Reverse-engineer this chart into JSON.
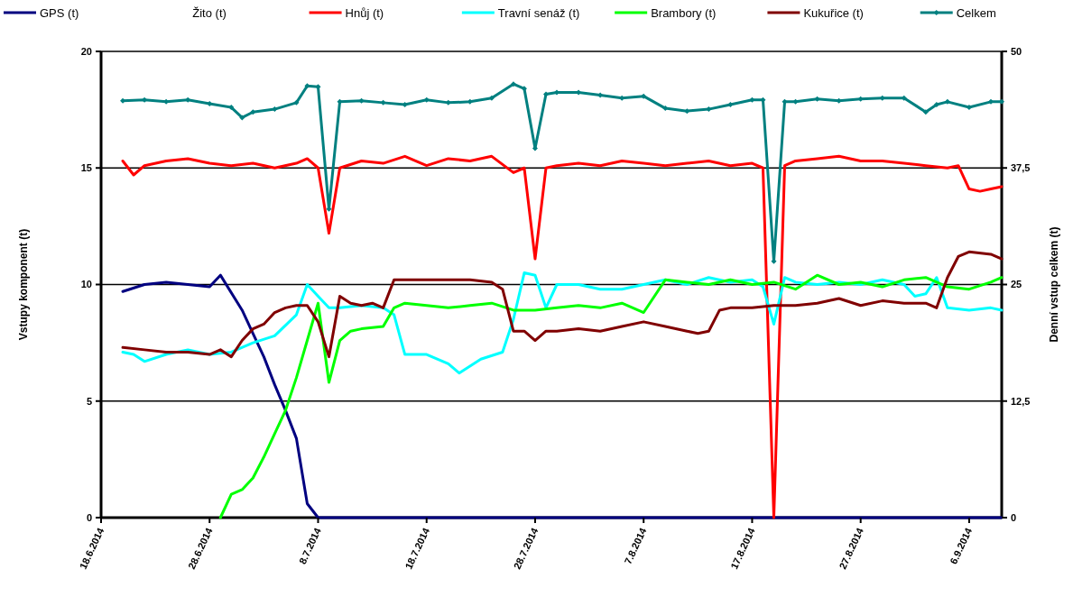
{
  "chart_data": {
    "type": "line",
    "ylabel": "Vstupy komponent (t)",
    "y2label": "Denní vstup celkem (t)",
    "xlim": [
      "2014-06-18",
      "2014-09-09"
    ],
    "xticks": [
      {
        "value": "2014-06-18",
        "label": "18.6.2014"
      },
      {
        "value": "2014-06-28",
        "label": "28.6.2014"
      },
      {
        "value": "2014-07-08",
        "label": "8.7.2014"
      },
      {
        "value": "2014-07-18",
        "label": "18.7.2014"
      },
      {
        "value": "2014-07-28",
        "label": "28.7.2014"
      },
      {
        "value": "2014-08-07",
        "label": "7.8.2014"
      },
      {
        "value": "2014-08-17",
        "label": "17.8.2014"
      },
      {
        "value": "2014-08-27",
        "label": "27.8.2014"
      },
      {
        "value": "2014-09-06",
        "label": "6.9.2014"
      }
    ],
    "ylim": [
      0,
      20
    ],
    "yticks": [
      0,
      5,
      10,
      15,
      20
    ],
    "y2lim": [
      0,
      50
    ],
    "y2ticks": [
      0,
      {
        "value": 12.5,
        "label": "12,5"
      },
      25,
      {
        "value": 37.5,
        "label": "37,5"
      },
      50
    ],
    "grid": "y",
    "legend": "top",
    "series": [
      {
        "name": "GPS (t)",
        "color": "#000080",
        "x": [
          "2014-06-20",
          "2014-06-22",
          "2014-06-24",
          "2014-06-26",
          "2014-06-28",
          "2014-06-29",
          "2014-07-01",
          "2014-07-02",
          "2014-07-03",
          "2014-07-04",
          "2014-07-05",
          "2014-07-06",
          "2014-07-07",
          "2014-07-08",
          "2014-09-09"
        ],
        "values": [
          9.7,
          10.0,
          10.1,
          10.0,
          9.9,
          10.4,
          8.9,
          7.9,
          6.9,
          5.7,
          4.6,
          3.4,
          0.6,
          0,
          0
        ]
      },
      {
        "name": "Žito (t)"
      },
      {
        "name": "Hnůj (t)",
        "color": "#ff0000",
        "x": [
          "2014-06-20",
          "2014-06-21",
          "2014-06-22",
          "2014-06-24",
          "2014-06-26",
          "2014-06-28",
          "2014-06-30",
          "2014-07-02",
          "2014-07-04",
          "2014-07-06",
          "2014-07-07",
          "2014-07-08",
          "2014-07-09",
          "2014-07-10",
          "2014-07-12",
          "2014-07-14",
          "2014-07-16",
          "2014-07-18",
          "2014-07-20",
          "2014-07-22",
          "2014-07-24",
          "2014-07-26",
          "2014-07-27",
          "2014-07-28",
          "2014-07-29",
          "2014-07-30",
          "2014-08-01",
          "2014-08-03",
          "2014-08-05",
          "2014-08-07",
          "2014-08-09",
          "2014-08-11",
          "2014-08-13",
          "2014-08-15",
          "2014-08-17",
          "2014-08-18",
          "2014-08-19",
          "2014-08-20",
          "2014-08-21",
          "2014-08-23",
          "2014-08-25",
          "2014-08-27",
          "2014-08-29",
          "2014-08-31",
          "2014-09-02",
          "2014-09-04",
          "2014-09-05",
          "2014-09-06",
          "2014-09-07",
          "2014-09-08",
          "2014-09-09"
        ],
        "values": [
          15.3,
          14.7,
          15.1,
          15.3,
          15.4,
          15.2,
          15.1,
          15.2,
          15.0,
          15.2,
          15.4,
          15.0,
          12.2,
          15.0,
          15.3,
          15.2,
          15.5,
          15.1,
          15.4,
          15.3,
          15.5,
          14.8,
          15.0,
          11.1,
          15.0,
          15.1,
          15.2,
          15.1,
          15.3,
          15.2,
          15.1,
          15.2,
          15.3,
          15.1,
          15.2,
          15.0,
          0,
          15.1,
          15.3,
          15.4,
          15.5,
          15.3,
          15.3,
          15.2,
          15.1,
          15.0,
          15.1,
          14.1,
          14.0,
          14.1,
          14.2
        ]
      },
      {
        "name": "Travní senáž (t)",
        "color": "#00ffff",
        "x": [
          "2014-06-20",
          "2014-06-21",
          "2014-06-22",
          "2014-06-24",
          "2014-06-26",
          "2014-06-28",
          "2014-06-30",
          "2014-07-02",
          "2014-07-04",
          "2014-07-06",
          "2014-07-07",
          "2014-07-08",
          "2014-07-09",
          "2014-07-10",
          "2014-07-12",
          "2014-07-14",
          "2014-07-15",
          "2014-07-16",
          "2014-07-18",
          "2014-07-20",
          "2014-07-21",
          "2014-07-23",
          "2014-07-25",
          "2014-07-26",
          "2014-07-27",
          "2014-07-28",
          "2014-07-29",
          "2014-07-30",
          "2014-08-01",
          "2014-08-03",
          "2014-08-05",
          "2014-08-07",
          "2014-08-09",
          "2014-08-11",
          "2014-08-13",
          "2014-08-15",
          "2014-08-17",
          "2014-08-18",
          "2014-08-19",
          "2014-08-20",
          "2014-08-21",
          "2014-08-23",
          "2014-08-25",
          "2014-08-27",
          "2014-08-29",
          "2014-08-31",
          "2014-09-01",
          "2014-09-02",
          "2014-09-03",
          "2014-09-04",
          "2014-09-06",
          "2014-09-08",
          "2014-09-09"
        ],
        "values": [
          7.1,
          7.0,
          6.7,
          7.0,
          7.2,
          7.0,
          7.1,
          7.5,
          7.8,
          8.7,
          10.0,
          9.5,
          9.0,
          9.0,
          9.1,
          9.0,
          8.7,
          7.0,
          7.0,
          6.6,
          6.2,
          6.8,
          7.1,
          8.5,
          10.5,
          10.4,
          9.0,
          10.0,
          10.0,
          9.8,
          9.8,
          10.0,
          10.2,
          10.0,
          10.3,
          10.1,
          10.2,
          9.9,
          8.3,
          10.3,
          10.1,
          10.0,
          10.1,
          10.0,
          10.2,
          10.0,
          9.5,
          9.6,
          10.3,
          9.0,
          8.9,
          9.0,
          8.9
        ]
      },
      {
        "name": "Brambory (t)",
        "color": "#00ff00",
        "x": [
          "2014-06-29",
          "2014-06-30",
          "2014-07-01",
          "2014-07-02",
          "2014-07-03",
          "2014-07-04",
          "2014-07-05",
          "2014-07-06",
          "2014-07-07",
          "2014-07-08",
          "2014-07-09",
          "2014-07-10",
          "2014-07-11",
          "2014-07-12",
          "2014-07-14",
          "2014-07-15",
          "2014-07-16",
          "2014-07-18",
          "2014-07-20",
          "2014-07-22",
          "2014-07-24",
          "2014-07-26",
          "2014-07-28",
          "2014-07-30",
          "2014-08-01",
          "2014-08-03",
          "2014-08-05",
          "2014-08-07",
          "2014-08-09",
          "2014-08-11",
          "2014-08-13",
          "2014-08-15",
          "2014-08-17",
          "2014-08-19",
          "2014-08-21",
          "2014-08-23",
          "2014-08-25",
          "2014-08-27",
          "2014-08-29",
          "2014-08-31",
          "2014-09-02",
          "2014-09-04",
          "2014-09-06",
          "2014-09-08",
          "2014-09-09"
        ],
        "values": [
          0,
          1.0,
          1.2,
          1.7,
          2.6,
          3.6,
          4.6,
          6.0,
          7.6,
          9.2,
          5.8,
          7.6,
          8.0,
          8.1,
          8.2,
          9.0,
          9.2,
          9.1,
          9.0,
          9.1,
          9.2,
          8.9,
          8.9,
          9.0,
          9.1,
          9.0,
          9.2,
          8.8,
          10.2,
          10.1,
          10.0,
          10.2,
          10.0,
          10.1,
          9.8,
          10.4,
          10.0,
          10.1,
          9.9,
          10.2,
          10.3,
          9.9,
          9.8,
          10.1,
          10.3
        ]
      },
      {
        "name": "Kukuřice (t)",
        "color": "#800000",
        "x": [
          "2014-06-20",
          "2014-06-22",
          "2014-06-24",
          "2014-06-26",
          "2014-06-28",
          "2014-06-29",
          "2014-06-30",
          "2014-07-01",
          "2014-07-02",
          "2014-07-03",
          "2014-07-04",
          "2014-07-05",
          "2014-07-06",
          "2014-07-07",
          "2014-07-08",
          "2014-07-09",
          "2014-07-10",
          "2014-07-11",
          "2014-07-12",
          "2014-07-13",
          "2014-07-14",
          "2014-07-15",
          "2014-07-16",
          "2014-07-18",
          "2014-07-20",
          "2014-07-22",
          "2014-07-24",
          "2014-07-25",
          "2014-07-26",
          "2014-07-27",
          "2014-07-28",
          "2014-07-29",
          "2014-07-30",
          "2014-08-01",
          "2014-08-03",
          "2014-08-05",
          "2014-08-07",
          "2014-08-09",
          "2014-08-11",
          "2014-08-12",
          "2014-08-13",
          "2014-08-14",
          "2014-08-15",
          "2014-08-17",
          "2014-08-19",
          "2014-08-21",
          "2014-08-23",
          "2014-08-25",
          "2014-08-27",
          "2014-08-29",
          "2014-08-31",
          "2014-09-02",
          "2014-09-03",
          "2014-09-04",
          "2014-09-05",
          "2014-09-06",
          "2014-09-08",
          "2014-09-09"
        ],
        "values": [
          7.3,
          7.2,
          7.1,
          7.1,
          7.0,
          7.2,
          6.9,
          7.6,
          8.1,
          8.3,
          8.8,
          9.0,
          9.1,
          9.1,
          8.4,
          6.9,
          9.5,
          9.2,
          9.1,
          9.2,
          9.0,
          10.2,
          10.2,
          10.2,
          10.2,
          10.2,
          10.1,
          9.8,
          8.0,
          8.0,
          7.6,
          8.0,
          8.0,
          8.1,
          8.0,
          8.2,
          8.4,
          8.2,
          8.0,
          7.9,
          8.0,
          8.9,
          9.0,
          9.0,
          9.1,
          9.1,
          9.2,
          9.4,
          9.1,
          9.3,
          9.2,
          9.2,
          9.0,
          10.3,
          11.2,
          11.4,
          11.3,
          11.1
        ]
      },
      {
        "name": "Celkem",
        "color": "#008080",
        "axis": "y2",
        "marker": "diamond",
        "x": [
          "2014-06-20",
          "2014-06-22",
          "2014-06-24",
          "2014-06-26",
          "2014-06-28",
          "2014-06-30",
          "2014-07-01",
          "2014-07-02",
          "2014-07-04",
          "2014-07-06",
          "2014-07-07",
          "2014-07-08",
          "2014-07-09",
          "2014-07-10",
          "2014-07-12",
          "2014-07-14",
          "2014-07-16",
          "2014-07-18",
          "2014-07-20",
          "2014-07-22",
          "2014-07-24",
          "2014-07-26",
          "2014-07-27",
          "2014-07-28",
          "2014-07-29",
          "2014-07-30",
          "2014-08-01",
          "2014-08-03",
          "2014-08-05",
          "2014-08-07",
          "2014-08-09",
          "2014-08-11",
          "2014-08-13",
          "2014-08-15",
          "2014-08-17",
          "2014-08-18",
          "2014-08-19",
          "2014-08-20",
          "2014-08-21",
          "2014-08-23",
          "2014-08-25",
          "2014-08-27",
          "2014-08-29",
          "2014-08-31",
          "2014-09-02",
          "2014-09-03",
          "2014-09-04",
          "2014-09-06",
          "2014-09-08",
          "2014-09-09"
        ],
        "values": [
          44.7,
          44.8,
          44.6,
          44.8,
          44.4,
          44.0,
          42.9,
          43.5,
          43.8,
          44.5,
          46.3,
          46.2,
          33.1,
          44.6,
          44.7,
          44.5,
          44.3,
          44.8,
          44.5,
          44.6,
          45.0,
          46.5,
          46.0,
          39.6,
          45.4,
          45.6,
          45.6,
          45.3,
          45.0,
          45.2,
          43.9,
          43.6,
          43.8,
          44.3,
          44.8,
          44.8,
          27.5,
          44.6,
          44.6,
          44.9,
          44.7,
          44.9,
          45.0,
          45.0,
          43.5,
          44.3,
          44.6,
          44.0,
          44.6,
          44.6
        ]
      }
    ]
  }
}
